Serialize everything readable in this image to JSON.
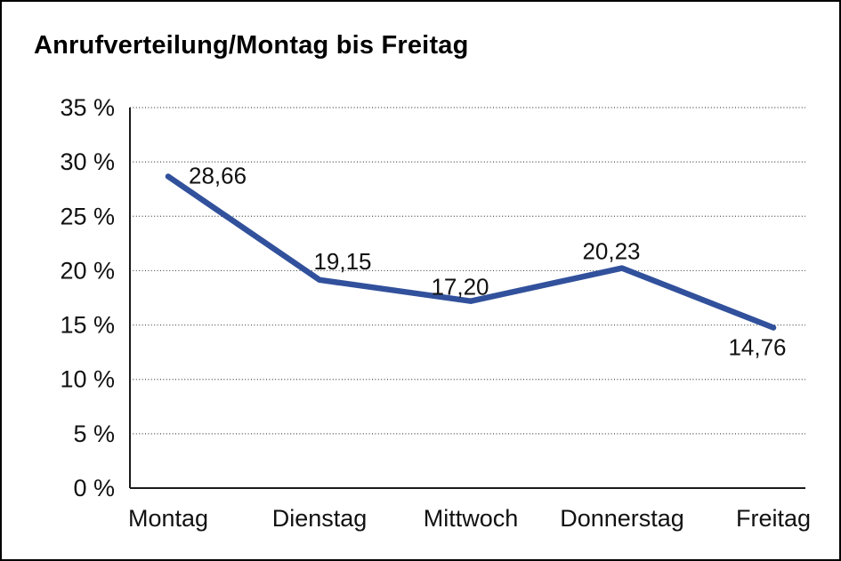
{
  "window": {
    "title": "Anrufverteilung/Montag bis Freitag"
  },
  "chart_data": {
    "type": "line",
    "title": "Anrufverteilung/Montag bis Freitag",
    "categories": [
      "Montag",
      "Dienstag",
      "Mittwoch",
      "Donnerstag",
      "Freitag"
    ],
    "values": [
      28.66,
      19.15,
      17.2,
      20.23,
      14.76
    ],
    "value_labels": [
      "28,66",
      "19,15",
      "17,20",
      "20,23",
      "14,76"
    ],
    "unit": "%",
    "xlabel": "",
    "ylabel": "%",
    "ylim": [
      0,
      35
    ],
    "ytick_step": 5,
    "ytick_labels": [
      "0 %",
      "5 %",
      "10 %",
      "15 %",
      "20 %",
      "25 %",
      "30 %",
      "35 %"
    ],
    "grid": "horizontal-dotted",
    "legend_position": "none",
    "colors": {
      "line": "#32519C",
      "axis": "#1a1a1a",
      "gridline": "#4a4a4a",
      "text": "#111111",
      "background": "#ffffff",
      "border": "#000000"
    }
  }
}
